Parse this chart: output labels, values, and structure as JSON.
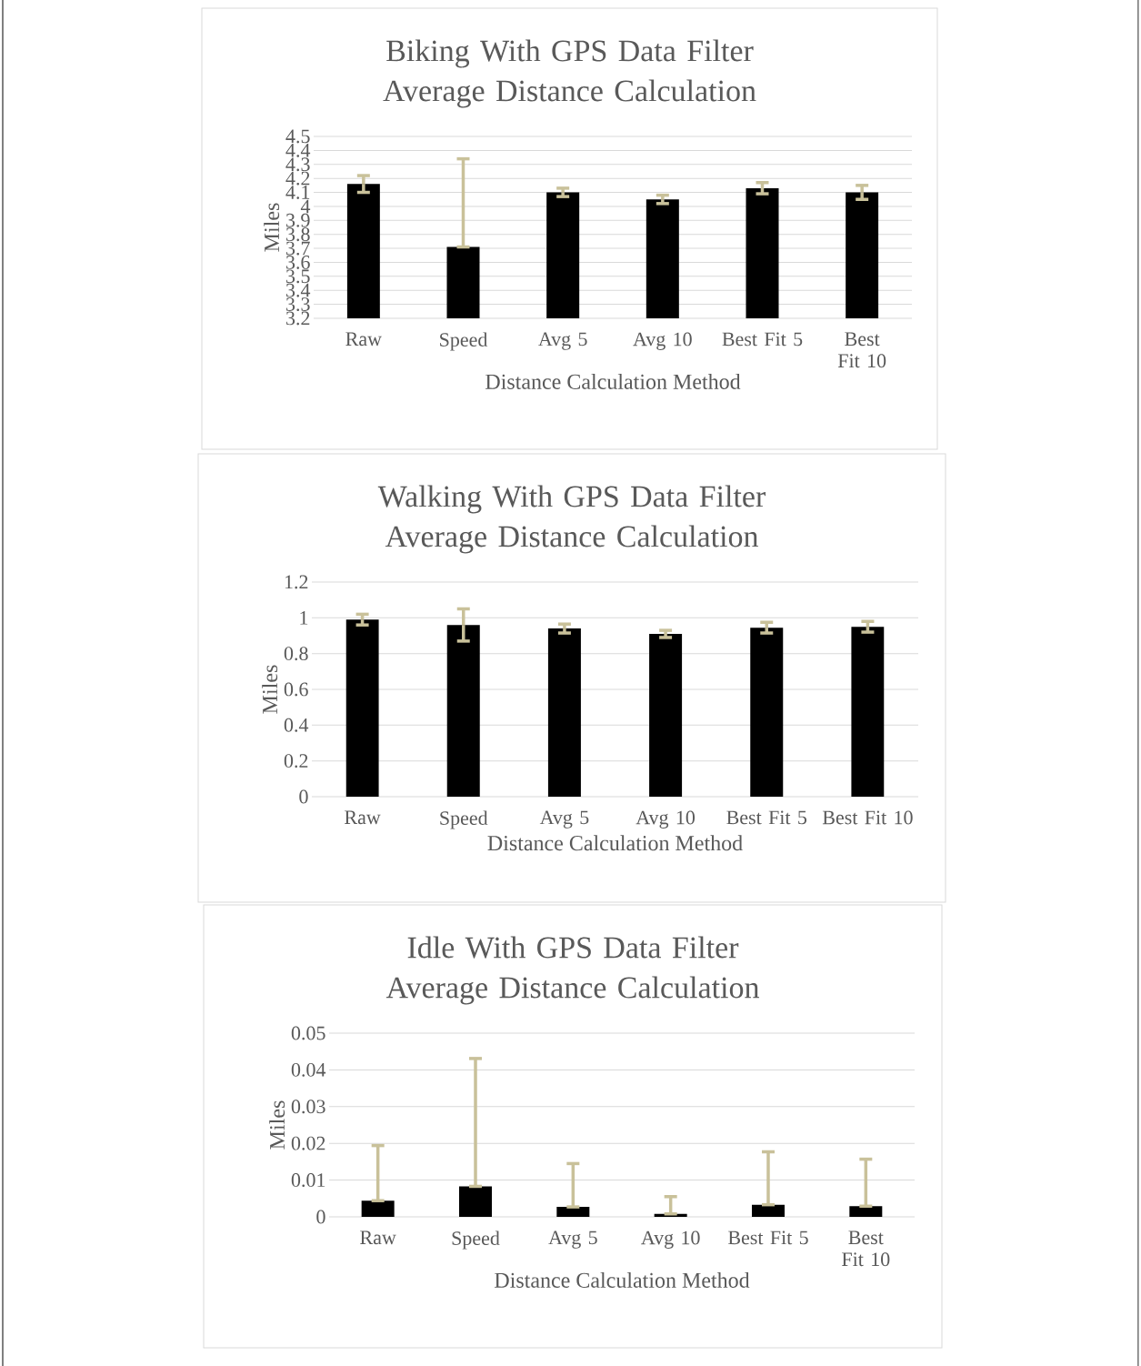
{
  "chart_data": [
    {
      "type": "bar",
      "title": "Biking With GPS Data Filter Average Distance Calculation",
      "xlabel": "Distance Calculation Method",
      "ylabel": "Miles",
      "categories": [
        "Raw",
        "Speed",
        "Avg 5",
        "Avg 10",
        "Best Fit 5",
        "Best Fit 10"
      ],
      "values": [
        4.16,
        3.71,
        4.1,
        4.05,
        4.13,
        4.1
      ],
      "errors": [
        0.06,
        [
          3.71,
          4.34
        ],
        0.03,
        0.03,
        0.04,
        0.05
      ],
      "color": "#000000",
      "ylim": [
        3.2,
        4.5
      ],
      "yticks": [
        3.2,
        3.3,
        3.4,
        3.5,
        3.6,
        3.7,
        3.8,
        3.9,
        4,
        4.1,
        4.2,
        4.3,
        4.4,
        4.5
      ],
      "grid": "y"
    },
    {
      "type": "bar",
      "title": "Walking With GPS Data Filter Average Distance Calculation",
      "xlabel": "Distance Calculation Method",
      "ylabel": "Miles",
      "categories": [
        "Raw",
        "Speed",
        "Avg 5",
        "Avg 10",
        "Best Fit 5",
        "Best Fit 10"
      ],
      "values": [
        0.99,
        0.96,
        0.94,
        0.91,
        0.945,
        0.95
      ],
      "errors": [
        0.03,
        0.09,
        0.025,
        0.02,
        0.03,
        0.03
      ],
      "color": "#000000",
      "ylim": [
        0,
        1.2
      ],
      "yticks": [
        0,
        0.2,
        0.4,
        0.6,
        0.8,
        1,
        1.2
      ],
      "grid": "y"
    },
    {
      "type": "bar",
      "title": "Idle With GPS Data Filter Average Distance Calculation",
      "xlabel": "Distance Calculation Method",
      "ylabel": "Miles",
      "categories": [
        "Raw",
        "Speed",
        "Avg 5",
        "Avg 10",
        "Best Fit 5",
        "Best Fit 10"
      ],
      "values": [
        0.0044,
        0.0083,
        0.0027,
        0.0008,
        0.0033,
        0.0029
      ],
      "errors": [
        [
          0.0044,
          0.0194
        ],
        [
          0.0083,
          0.0431
        ],
        [
          0.0027,
          0.0145
        ],
        [
          0.0008,
          0.0055
        ],
        [
          0.0033,
          0.0177
        ],
        [
          0.0029,
          0.0157
        ]
      ],
      "color": "#000000",
      "ylim": [
        0,
        0.05
      ],
      "yticks": [
        0,
        0.01,
        0.02,
        0.03,
        0.04,
        0.05
      ],
      "grid": "y"
    }
  ]
}
